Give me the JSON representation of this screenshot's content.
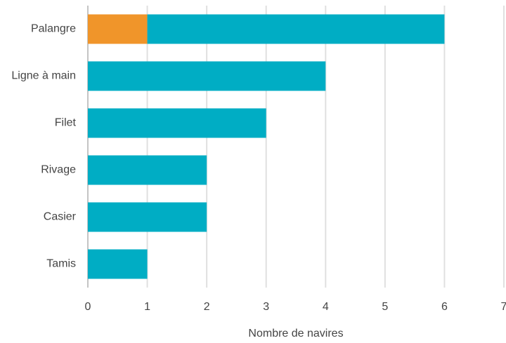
{
  "chart_data": {
    "type": "hbar-stacked",
    "categories": [
      "Palangre",
      "Ligne à main",
      "Filet",
      "Rivage",
      "Casier",
      "Tamis"
    ],
    "series": [
      {
        "color": "#f0952a",
        "values": [
          1,
          null,
          null,
          null,
          null,
          null
        ]
      },
      {
        "color": "#00adc4",
        "values": [
          5,
          4,
          3,
          2,
          2,
          1
        ]
      }
    ],
    "xlabel": "Nombre de navires",
    "xlim": [
      0,
      7
    ],
    "xticks": [
      0,
      1,
      2,
      3,
      4,
      5,
      6,
      7
    ],
    "grid": true
  }
}
